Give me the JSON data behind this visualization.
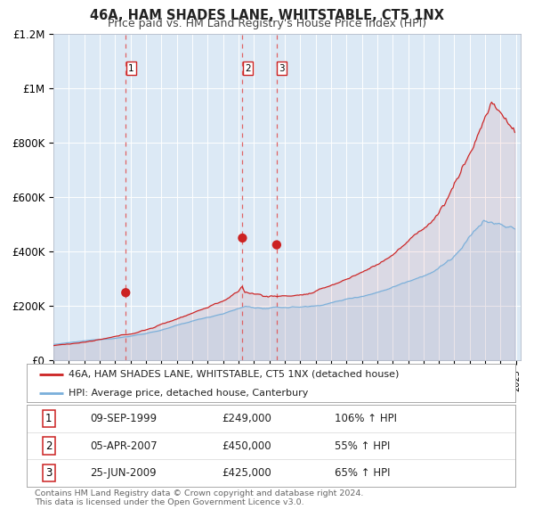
{
  "title": "46A, HAM SHADES LANE, WHITSTABLE, CT5 1NX",
  "subtitle": "Price paid vs. HM Land Registry's House Price Index (HPI)",
  "fig_bg_color": "#ffffff",
  "plot_bg_color": "#dce9f5",
  "red_color": "#cc2222",
  "blue_color": "#7aafda",
  "ylim": [
    0,
    1200000
  ],
  "yticks": [
    0,
    200000,
    400000,
    600000,
    800000,
    1000000,
    1200000
  ],
  "ytick_labels": [
    "£0",
    "£200K",
    "£400K",
    "£600K",
    "£800K",
    "£1M",
    "£1.2M"
  ],
  "sale_dates_num": [
    1999.69,
    2007.26,
    2009.48
  ],
  "sale_prices": [
    249000,
    450000,
    425000
  ],
  "sale_labels": [
    "1",
    "2",
    "3"
  ],
  "vline_color": "#e05555",
  "legend_line1": "46A, HAM SHADES LANE, WHITSTABLE, CT5 1NX (detached house)",
  "legend_line2": "HPI: Average price, detached house, Canterbury",
  "table_data": [
    [
      "1",
      "09-SEP-1999",
      "£249,000",
      "106% ↑ HPI"
    ],
    [
      "2",
      "05-APR-2007",
      "£450,000",
      "55% ↑ HPI"
    ],
    [
      "3",
      "25-JUN-2009",
      "£425,000",
      "65% ↑ HPI"
    ]
  ],
  "footnote1": "Contains HM Land Registry data © Crown copyright and database right 2024.",
  "footnote2": "This data is licensed under the Open Government Licence v3.0."
}
